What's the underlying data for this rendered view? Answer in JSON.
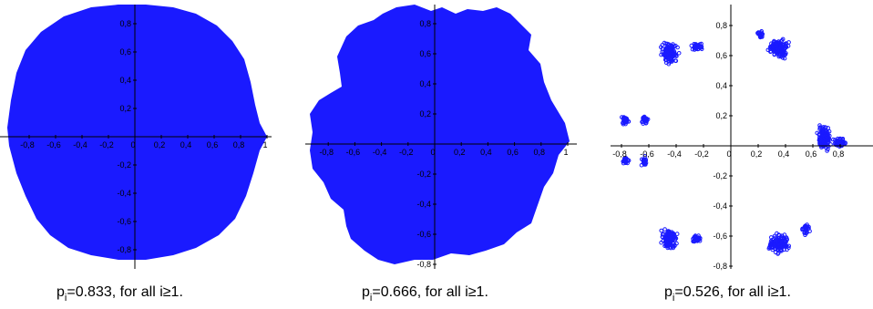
{
  "chart_data": [
    {
      "type": "scatter",
      "xlim": [
        -1,
        1
      ],
      "ylim": [
        -0.9,
        0.9
      ],
      "x_ticks": [
        "-0,8",
        "-0,6",
        "-0,4",
        "-0,2",
        "0",
        "0,2",
        "0,4",
        "0,6",
        "0,8",
        "1"
      ],
      "y_ticks": [
        "0,8",
        "0,6",
        "0,4",
        "0,2",
        "-0,2",
        "-0,4",
        "-0,6",
        "-0,8"
      ],
      "color": "#1a1aff",
      "caption": {
        "p": "p",
        "i": "i",
        "rest": "=0.833, for all i≥1."
      }
    },
    {
      "type": "scatter",
      "xlim": [
        -1,
        1
      ],
      "ylim": [
        -0.9,
        0.9
      ],
      "x_ticks": [
        "-0,8",
        "-0,6",
        "-0,4",
        "-0,2",
        "0",
        "0,2",
        "0,4",
        "0,6",
        "0,8",
        "1"
      ],
      "y_ticks": [
        "0,8",
        "0,6",
        "0,4",
        "0,2",
        "-0,2",
        "-0,4",
        "-0,6",
        "-0,8"
      ],
      "color": "#1a1aff",
      "caption": {
        "p": "p",
        "i": "i",
        "rest": "=0.666, for all i≥1."
      }
    },
    {
      "type": "scatter",
      "xlim": [
        -0.85,
        0.95
      ],
      "ylim": [
        -0.85,
        0.85
      ],
      "x_ticks": [
        "-0,8",
        "-0,6",
        "-0,4",
        "-0,2",
        "0",
        "0,2",
        "0,4",
        "0,6",
        "0,8"
      ],
      "y_ticks": [
        "0,8",
        "0,6",
        "0,4",
        "0,2",
        "-0,2",
        "-0,4",
        "-0,6",
        "-0,8"
      ],
      "color": "#1a1aff",
      "caption": {
        "p": "p",
        "i": "i",
        "rest": "=0.526, for all i≥1."
      }
    }
  ]
}
